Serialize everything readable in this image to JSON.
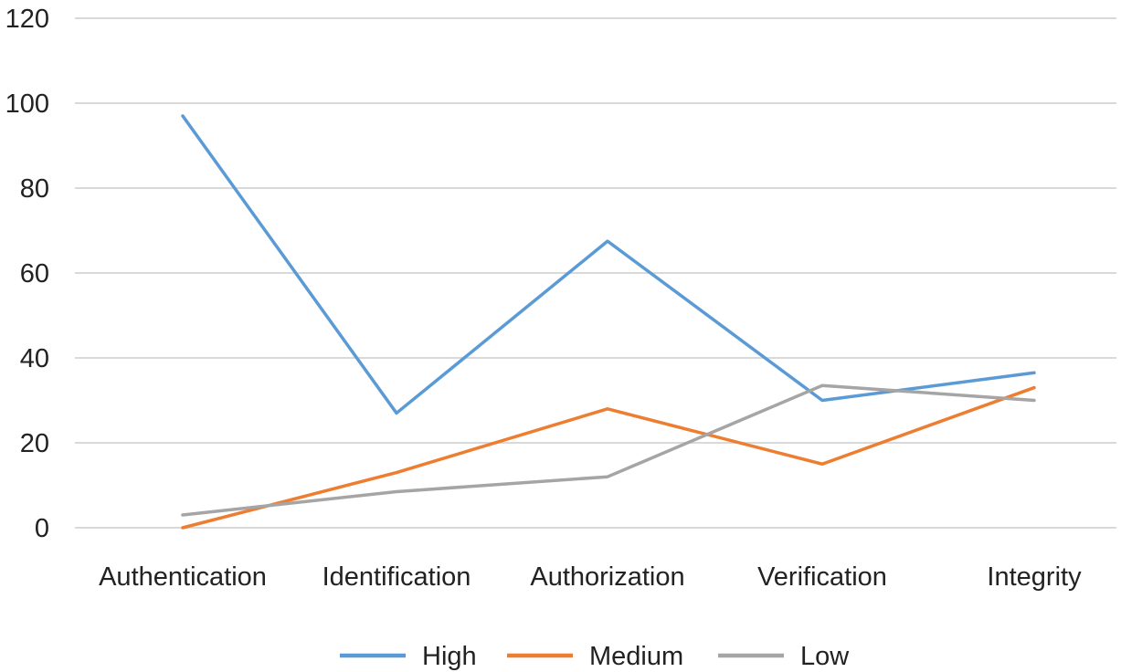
{
  "chart_data": {
    "type": "line",
    "categories": [
      "Authentication",
      "Identification",
      "Authorization",
      "Verification",
      "Integrity"
    ],
    "series": [
      {
        "name": "High",
        "color": "#5b9bd5",
        "values": [
          97,
          27,
          67.5,
          30,
          36.5
        ]
      },
      {
        "name": "Medium",
        "color": "#ed7d31",
        "values": [
          0,
          13,
          28,
          15,
          33
        ]
      },
      {
        "name": "Low",
        "color": "#a5a5a5",
        "values": [
          3,
          8.5,
          12,
          33.5,
          30
        ]
      }
    ],
    "ylim": [
      0,
      120
    ],
    "yticks": [
      0,
      20,
      40,
      60,
      80,
      100,
      120
    ],
    "grid": true,
    "legend_position": "bottom"
  }
}
